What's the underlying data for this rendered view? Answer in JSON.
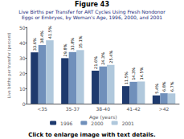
{
  "chart_data": {
    "type": "bar",
    "title": "Figure 43",
    "subtitle": "Live Births per Transfer for ART Cycles Using Fresh Nondonor\nEggs or Embryos, by Woman's Age, 1996, 2000, and 2001",
    "categories": [
      "<35",
      "35-37",
      "38-40",
      "41-42",
      ">42"
    ],
    "series": [
      {
        "name": "1996",
        "color": "#1e3a6e",
        "values": [
          33.6,
          29.8,
          21.6,
          11.5,
          5.4
        ],
        "value_labels": [
          "33.6%",
          "29.8%",
          "21.6%",
          "11.5%",
          "5.4%"
        ]
      },
      {
        "name": "2000",
        "color": "#7090bb",
        "values": [
          38.4,
          33.8,
          24.3,
          14.3,
          6.8
        ],
        "value_labels": [
          "38.4%",
          "33.8%",
          "24.3%",
          "14.3%",
          "6.8%"
        ]
      },
      {
        "name": "2001",
        "color": "#b0c8dc",
        "values": [
          41.5,
          35.1,
          25.4,
          14.5,
          6.7
        ],
        "value_labels": [
          "41.5%",
          "35.1%",
          "25.4%",
          "14.5%",
          "6.7%"
        ]
      }
    ],
    "xlabel": "Age (years)",
    "ylabel": "Live births per transfer (percent)",
    "ylim": [
      0,
      50
    ],
    "yticks": [
      0,
      10,
      20,
      30,
      40,
      50
    ],
    "grid": false,
    "legend": "bottom",
    "data_labels": true,
    "annotations": [
      "Click to enlarge image with text details."
    ]
  }
}
